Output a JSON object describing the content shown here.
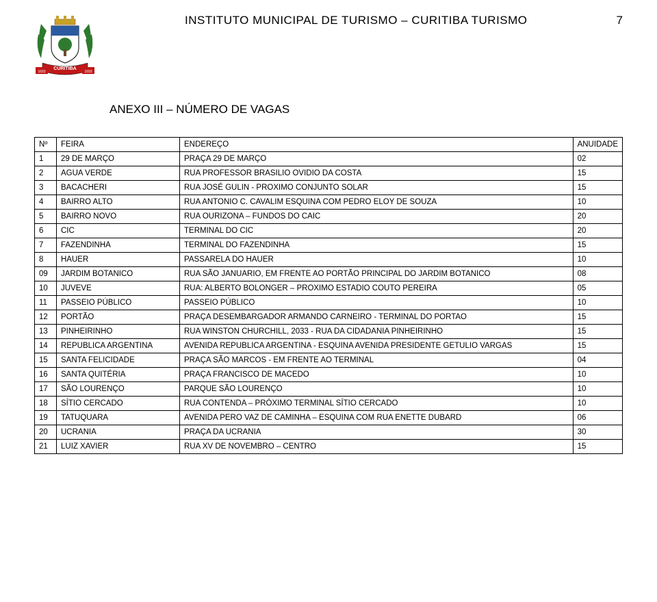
{
  "header": {
    "title": "INSTITUTO MUNICIPAL DE TURISMO – CURITIBA TURISMO",
    "page_number": "7"
  },
  "section_title": "ANEXO III – NÚMERO DE VAGAS",
  "crest": {
    "banner_text": "CURITIBA",
    "left_year": "1693",
    "right_year": "1693",
    "colors": {
      "red": "#c01818",
      "green": "#2e7a2e",
      "gold": "#c9a227",
      "blue": "#2b5aa0",
      "white": "#ffffff",
      "brown": "#6b4a2b"
    }
  },
  "table": {
    "columns": [
      "Nº",
      "FEIRA",
      "ENDEREÇO",
      "ANUIDADE"
    ],
    "rows": [
      [
        "1",
        "29 DE MARÇO",
        "PRAÇA 29 DE MARÇO",
        "02"
      ],
      [
        "2",
        "AGUA VERDE",
        "RUA PROFESSOR BRASILIO OVIDIO DA COSTA",
        "15"
      ],
      [
        "3",
        "BACACHERI",
        "RUA JOSÉ GULIN - PROXIMO CONJUNTO SOLAR",
        "15"
      ],
      [
        "4",
        "BAIRRO ALTO",
        "RUA ANTONIO C. CAVALIM ESQUINA COM PEDRO ELOY DE SOUZA",
        "10"
      ],
      [
        "5",
        "BAIRRO NOVO",
        "RUA OURIZONA – FUNDOS DO CAIC",
        "20"
      ],
      [
        "6",
        "CIC",
        "TERMINAL DO CIC",
        "20"
      ],
      [
        "7",
        "FAZENDINHA",
        "TERMINAL DO FAZENDINHA",
        "15"
      ],
      [
        "8",
        "HAUER",
        "PASSARELA DO HAUER",
        "10"
      ],
      [
        "09",
        "JARDIM BOTANICO",
        "RUA  SÃO JANUARIO, EM FRENTE AO PORTÃO PRINCIPAL DO JARDIM BOTANICO",
        "08"
      ],
      [
        "10",
        "JUVEVE",
        "RUA: ALBERTO BOLONGER – PROXIMO ESTADIO COUTO PEREIRA",
        "05"
      ],
      [
        "11",
        "PASSEIO PÚBLICO",
        "PASSEIO PÚBLICO",
        "10"
      ],
      [
        "12",
        "PORTÃO",
        "PRAÇA DESEMBARGADOR ARMANDO CARNEIRO - TERMINAL DO PORTAO",
        "15"
      ],
      [
        "13",
        "PINHEIRINHO",
        "RUA WINSTON CHURCHILL, 2033 - RUA DA CIDADANIA PINHEIRINHO",
        "15"
      ],
      [
        "14",
        "REPUBLICA ARGENTINA",
        "AVENIDA REPUBLICA ARGENTINA -  ESQUINA AVENIDA PRESIDENTE GETULIO VARGAS",
        "15"
      ],
      [
        "15",
        "SANTA FELICIDADE",
        "PRAÇA SÃO MARCOS - EM FRENTE AO TERMINAL",
        "04"
      ],
      [
        "16",
        "SANTA QUITÉRIA",
        "PRAÇA FRANCISCO DE MACEDO",
        "10"
      ],
      [
        "17",
        "SÃO LOURENÇO",
        "PARQUE SÃO LOURENÇO",
        "10"
      ],
      [
        "18",
        "SÍTIO CERCADO",
        "RUA CONTENDA – PRÓXIMO TERMINAL SÍTIO CERCADO",
        "10"
      ],
      [
        "19",
        "TATUQUARA",
        "AVENIDA PERO VAZ DE CAMINHA – ESQUINA COM RUA ENETTE DUBARD",
        "06"
      ],
      [
        "20",
        "UCRANIA",
        "PRAÇA DA UCRANIA",
        "30"
      ],
      [
        "21",
        "LUIZ XAVIER",
        "RUA XV DE NOVEMBRO – CENTRO",
        "15"
      ]
    ]
  }
}
